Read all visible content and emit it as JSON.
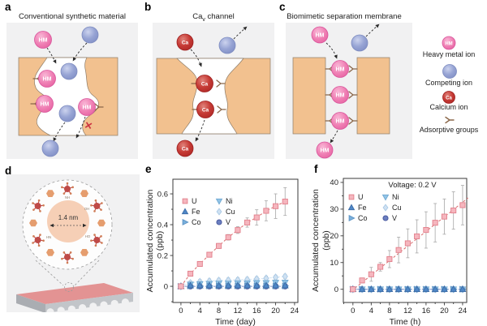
{
  "panels": {
    "a": {
      "letter": "a",
      "title": "Conventional synthetic material"
    },
    "b": {
      "letter": "b",
      "title_pre": "Ca",
      "title_sub": "v",
      "title_post": " channel"
    },
    "c": {
      "letter": "c",
      "title": "Biomimetic separation membrane"
    },
    "d": {
      "letter": "d",
      "pore_size": "1.4 nm",
      "chem_labels": [
        "NH",
        "OH",
        "HN",
        "HO"
      ]
    },
    "e": {
      "letter": "e"
    },
    "f": {
      "letter": "f"
    }
  },
  "ions": {
    "heavy_metal": "HM",
    "calcium": "Ca"
  },
  "marks": {
    "cross": "✕"
  },
  "legend": {
    "items": [
      {
        "icon": "heavy-metal-ion-icon",
        "label": "Heavy metal ion"
      },
      {
        "icon": "competing-ion-icon",
        "label": "Competing ion"
      },
      {
        "icon": "calcium-ion-icon",
        "label": "Calcium ion"
      },
      {
        "icon": "adsorptive-groups-icon",
        "label": "Adsorptive groups"
      }
    ]
  },
  "colors": {
    "panel_bg": "#f1f1f2",
    "membrane": "#f2c18f",
    "membrane_edge": "#8d7c68",
    "hm_ion": "#ee74ae",
    "competing_ion": "#8e9cce",
    "calcium_ion": "#bf302d",
    "adsorptive_group": "#8a6749",
    "arrow": "#2b2b2b",
    "cross": "#cc3340",
    "slab_top": "#e39393",
    "slab_front": "#c2c5c9",
    "trend": "#d96a6a",
    "error_bar": "#b0b0b0"
  },
  "chart_data": [
    {
      "id": "e",
      "type": "scatter",
      "title": "",
      "x": [
        0,
        2,
        4,
        6,
        8,
        10,
        12,
        14,
        16,
        18,
        20,
        22
      ],
      "series": [
        {
          "name": "U",
          "marker": "square",
          "fill": "#f5b6be",
          "edge": "#e27f8b",
          "values": [
            0,
            0.082,
            0.145,
            0.205,
            0.262,
            0.318,
            0.365,
            0.414,
            0.447,
            0.49,
            0.52,
            0.55
          ],
          "errors": [
            0.004,
            0.008,
            0.012,
            0.014,
            0.016,
            0.018,
            0.022,
            0.03,
            0.05,
            0.065,
            0.08,
            0.09
          ]
        },
        {
          "name": "Fe",
          "marker": "triangle-up",
          "fill": "#4e87c7",
          "edge": "#3c6ca6",
          "values": [
            0,
            0.005,
            0.005,
            0.005,
            0.005,
            0.005,
            0.005,
            0.005,
            0.005,
            0.005,
            0.005,
            0.005
          ],
          "err": 0.006
        },
        {
          "name": "Co",
          "marker": "triangle-right",
          "fill": "#79b0dc",
          "edge": "#5d93c4",
          "values": [
            0,
            0.002,
            0.002,
            0.002,
            0.002,
            0.002,
            0.002,
            0.002,
            0.002,
            0.002,
            0.002,
            0.002
          ],
          "err": 0.005
        },
        {
          "name": "Ni",
          "marker": "triangle-down",
          "fill": "#92c4e6",
          "edge": "#6fa8d2",
          "values": [
            0,
            0.012,
            0.015,
            0.016,
            0.018,
            0.018,
            0.02,
            0.02,
            0.022,
            0.022,
            0.024,
            0.025
          ],
          "err": 0.008
        },
        {
          "name": "Cu",
          "marker": "diamond",
          "fill": "#cfe1f2",
          "edge": "#a9c9e5",
          "values": [
            0,
            0.022,
            0.03,
            0.034,
            0.038,
            0.04,
            0.042,
            0.044,
            0.048,
            0.052,
            0.058,
            0.064
          ],
          "err": 0.014
        },
        {
          "name": "V",
          "marker": "circle",
          "fill": "#6b7fc0",
          "edge": "#44549b",
          "values": [
            0,
            0,
            0,
            0,
            0,
            0,
            0,
            0,
            0,
            0,
            0,
            0
          ],
          "err": 0.005
        }
      ],
      "xlabel": "Time (day)",
      "ylabel": [
        "Accumulated concentration",
        "(ppb)"
      ],
      "xticks": [
        0,
        4,
        8,
        12,
        16,
        20,
        24
      ],
      "xminor": 2,
      "yticks": [
        0,
        0.2,
        0.4,
        0.6
      ],
      "yminor": 0.1,
      "xlim": [
        -1.7,
        24.7
      ],
      "ylim": [
        -0.105,
        0.695
      ],
      "grid": false,
      "legend_position": "upper-left",
      "trend": {
        "kind": "points",
        "series": "U",
        "color": "#d96a6a"
      },
      "dashed_connect": [
        "Cu",
        "V"
      ],
      "legend_order": [
        "U",
        "Fe",
        "Co",
        "Ni",
        "Cu",
        "V"
      ],
      "annotation": ""
    },
    {
      "id": "f",
      "type": "scatter",
      "title": "",
      "x": [
        0,
        2,
        4,
        6,
        8,
        10,
        12,
        14,
        16,
        18,
        20,
        22,
        24
      ],
      "series": [
        {
          "name": "U",
          "marker": "square",
          "fill": "#f5b6be",
          "edge": "#e27f8b",
          "values": [
            0,
            3.3,
            5.6,
            8.4,
            11.3,
            14.7,
            17.2,
            19.8,
            22.2,
            24.9,
            27.2,
            29.5,
            31.5
          ],
          "errors": [
            0.3,
            0.9,
            2.6,
            1.6,
            3.2,
            4.8,
            5.4,
            6.2,
            6.8,
            7.2,
            6.6,
            7.0,
            7.4
          ]
        },
        {
          "name": "Fe",
          "marker": "triangle-up",
          "fill": "#4e87c7",
          "edge": "#3c6ca6",
          "values": [
            0,
            0,
            0,
            0,
            0,
            0,
            0,
            0,
            0,
            0,
            0,
            0,
            0
          ],
          "err": 0.4
        },
        {
          "name": "Co",
          "marker": "triangle-right",
          "fill": "#79b0dc",
          "edge": "#5d93c4",
          "values": [
            0,
            0,
            0,
            0,
            0,
            0,
            0,
            0,
            0,
            0,
            0,
            0,
            0
          ],
          "err": 0.4
        },
        {
          "name": "Ni",
          "marker": "triangle-down",
          "fill": "#92c4e6",
          "edge": "#6fa8d2",
          "values": [
            0,
            0,
            0,
            0,
            0,
            0,
            0,
            0,
            0,
            0,
            0,
            0,
            0
          ],
          "err": 0.4
        },
        {
          "name": "Cu",
          "marker": "diamond",
          "fill": "#cfe1f2",
          "edge": "#a9c9e5",
          "values": [
            0,
            0,
            0,
            0,
            0,
            0,
            0,
            0,
            0,
            0,
            0,
            0,
            0
          ],
          "err": 0.4
        },
        {
          "name": "V",
          "marker": "circle",
          "fill": "#6b7fc0",
          "edge": "#44549b",
          "values": [
            0,
            0,
            0,
            0,
            0,
            0,
            0,
            0,
            0,
            0,
            0,
            0,
            0
          ],
          "err": 0.4
        }
      ],
      "xlabel": "Time (h)",
      "ylabel": [
        "Accumulated concentration",
        "(ppb)"
      ],
      "xticks": [
        0,
        4,
        8,
        12,
        16,
        20,
        24
      ],
      "xminor": 2,
      "yticks": [
        0,
        10,
        20,
        30,
        40
      ],
      "yminor": 5,
      "xlim": [
        -2.1,
        24.9
      ],
      "ylim": [
        -4.95,
        41.5
      ],
      "grid": false,
      "legend_position": "upper-left",
      "trend": {
        "kind": "line",
        "from": [
          -0.3,
          -0.6
        ],
        "to": [
          25.2,
          34.2
        ],
        "color": "#d96a6a"
      },
      "dashed_connect": [
        "Cu",
        "V"
      ],
      "legend_order": [
        "U",
        "Fe",
        "Co",
        "Ni",
        "Cu",
        "V"
      ],
      "annotation": "Voltage: 0.2 V"
    }
  ]
}
